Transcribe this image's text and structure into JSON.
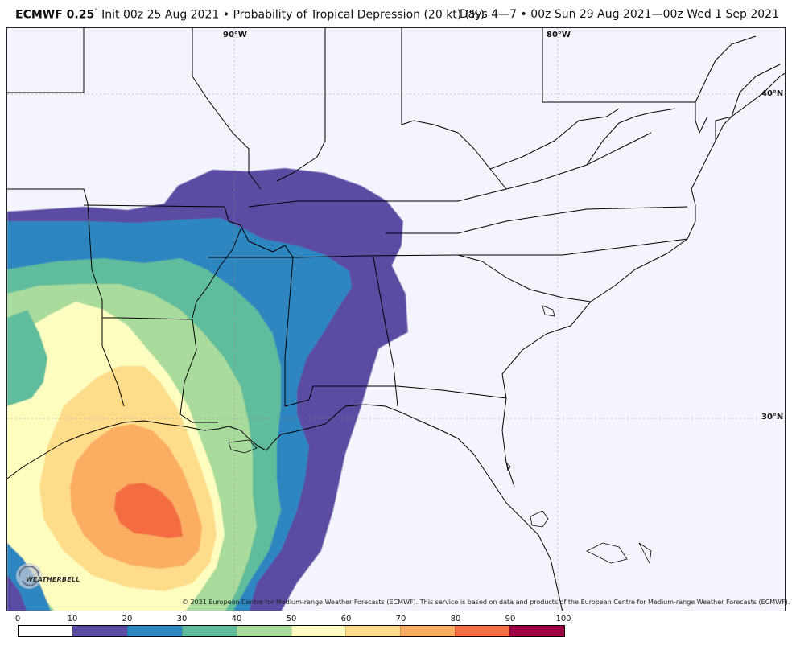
{
  "header": {
    "model_name": "ECMWF 0.25",
    "degree_symbol": "°",
    "init_text": "Init 00z 25 Aug 2021",
    "bullet": "•",
    "product": "Probability of Tropical Depression (20 kt) (%)",
    "valid_range": "Days 4—7 • 00z Sun 29 Aug 2021—00z Wed 1 Sep 2021"
  },
  "map": {
    "graticule_labels": [
      "90°W",
      "80°W",
      "40°N",
      "30°N"
    ],
    "background_color": "#f4f5fc",
    "border_color": "#000000"
  },
  "logo": {
    "text": "WEATHERBELL"
  },
  "copyright": "© 2021 European Centre for Medium-range Weather Forecasts (ECMWF). This service is based on data and products of the European Centre for Medium-range Weather Forecasts (ECMWF).",
  "colorbar": {
    "ticks": [
      "0",
      "10",
      "20",
      "30",
      "40",
      "50",
      "60",
      "70",
      "80",
      "90",
      "100"
    ],
    "colors": [
      "#ffffff",
      "#5b4ba3",
      "#2e86c1",
      "#5ebc9c",
      "#a8db9c",
      "#fdfdc0",
      "#fddc8a",
      "#fbad62",
      "#f46d43",
      "#9e0142"
    ]
  }
}
